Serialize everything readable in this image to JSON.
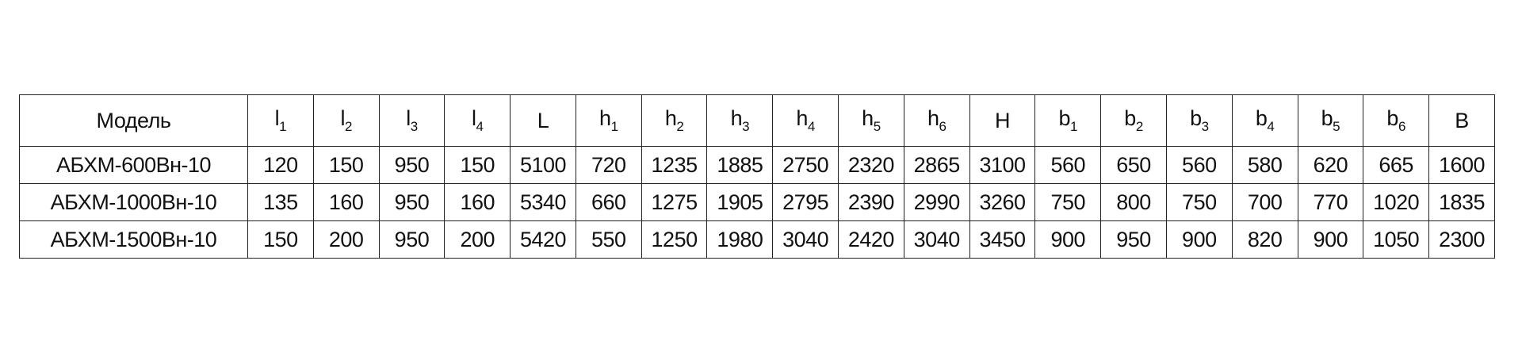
{
  "table": {
    "model_header": "Модель",
    "columns": [
      {
        "base": "l",
        "sub": "1"
      },
      {
        "base": "l",
        "sub": "2"
      },
      {
        "base": "l",
        "sub": "3"
      },
      {
        "base": "l",
        "sub": "4"
      },
      {
        "base": "L",
        "sub": ""
      },
      {
        "base": "h",
        "sub": "1"
      },
      {
        "base": "h",
        "sub": "2"
      },
      {
        "base": "h",
        "sub": "3"
      },
      {
        "base": "h",
        "sub": "4"
      },
      {
        "base": "h",
        "sub": "5"
      },
      {
        "base": "h",
        "sub": "6"
      },
      {
        "base": "H",
        "sub": ""
      },
      {
        "base": "b",
        "sub": "1"
      },
      {
        "base": "b",
        "sub": "2"
      },
      {
        "base": "b",
        "sub": "3"
      },
      {
        "base": "b",
        "sub": "4"
      },
      {
        "base": "b",
        "sub": "5"
      },
      {
        "base": "b",
        "sub": "6"
      },
      {
        "base": "B",
        "sub": ""
      }
    ],
    "rows": [
      {
        "model": "АБХМ-600Вн-10",
        "values": [
          "120",
          "150",
          "950",
          "150",
          "5100",
          "720",
          "1235",
          "1885",
          "2750",
          "2320",
          "2865",
          "3100",
          "560",
          "650",
          "560",
          "580",
          "620",
          "665",
          "1600"
        ]
      },
      {
        "model": "АБХМ-1000Вн-10",
        "values": [
          "135",
          "160",
          "950",
          "160",
          "5340",
          "660",
          "1275",
          "1905",
          "2795",
          "2390",
          "2990",
          "3260",
          "750",
          "800",
          "750",
          "700",
          "770",
          "1020",
          "1835"
        ]
      },
      {
        "model": "АБХМ-1500Вн-10",
        "values": [
          "150",
          "200",
          "950",
          "200",
          "5420",
          "550",
          "1250",
          "1980",
          "3040",
          "2420",
          "3040",
          "3450",
          "900",
          "950",
          "900",
          "820",
          "900",
          "1050",
          "2300"
        ]
      }
    ]
  }
}
